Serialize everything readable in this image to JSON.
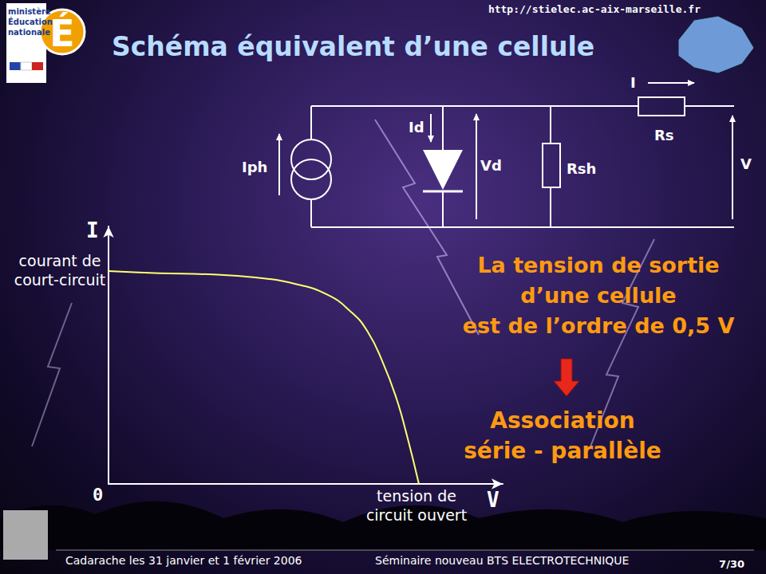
{
  "header": {
    "title": "Schéma équivalent d’une cellule",
    "url": "http://stielec.ac-aix-marseille.fr",
    "logo": [
      "ministère",
      "Éducation",
      "nationale"
    ]
  },
  "circuit": {
    "source": "Iph",
    "diode_current": "Id",
    "diode_voltage": "Vd",
    "shunt": "Rsh",
    "output_current": "I",
    "series": "Rs",
    "output_voltage": "V"
  },
  "chart_data": {
    "type": "line",
    "x": [
      0,
      0.165,
      0.319,
      0.473,
      0.6,
      0.704,
      0.78,
      0.833,
      0.884,
      0.928,
      0.961,
      1.0
    ],
    "values": [
      1,
      0.99,
      0.985,
      0.97,
      0.94,
      0.89,
      0.81,
      0.72,
      0.57,
      0.4,
      0.23,
      0
    ],
    "xlim": [
      0,
      1.27
    ],
    "ylim": [
      0,
      1.21
    ],
    "tick_labels": false,
    "grid": false,
    "color": "#ffff70",
    "x_label": "V",
    "y_label": "I",
    "origin_label": "0",
    "annotations": {
      "short_circuit": [
        "courant de",
        "court-circuit"
      ],
      "open_circuit": [
        "tension de",
        "circuit ouvert"
      ]
    }
  },
  "statement": [
    "La tension de sortie",
    "d’une cellule",
    "est de l’ordre de 0,5 V"
  ],
  "conclusion": [
    "Association",
    "série - parallèle"
  ],
  "footer": {
    "left": "Cadarache les 31 janvier et 1 février 2006",
    "center": "Séminaire nouveau BTS ELECTROTECHNIQUE",
    "page": "7/30"
  }
}
